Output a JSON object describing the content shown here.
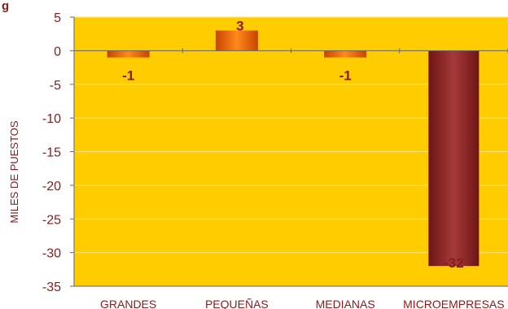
{
  "title_fragment": "g",
  "chart_data": {
    "type": "bar",
    "categories": [
      "GRANDES",
      "PEQUEÑAS",
      "MEDIANAS",
      "MICROEMPRESAS"
    ],
    "values": [
      -1,
      3,
      -1,
      -32
    ],
    "data_labels": [
      "-1",
      "3",
      "-1",
      "-32"
    ],
    "ylabel": "MILES DE PUESTOS",
    "ylim": [
      -35,
      5
    ],
    "yticks": [
      5,
      0,
      -5,
      -10,
      -15,
      -20,
      -25,
      -30,
      -35
    ],
    "grid": true,
    "colors": {
      "plot_background": "#ffcc00",
      "small_bar": "#ff6600",
      "large_bar": "#8b1f1f",
      "text": "#8b1a1a",
      "gridline": "#ffe680",
      "axis": "#666666"
    }
  }
}
